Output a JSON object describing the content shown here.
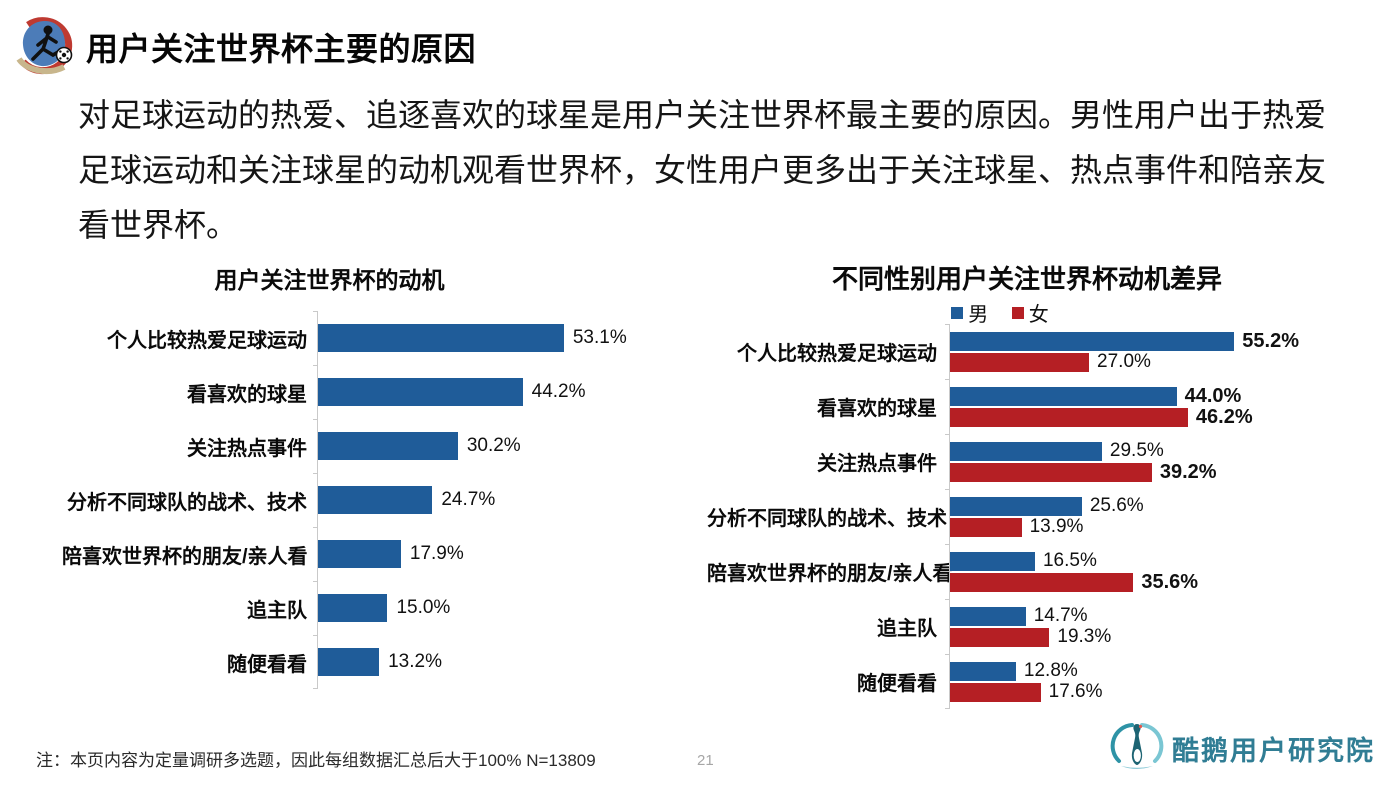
{
  "page": {
    "title": "用户关注世界杯主要的原因",
    "intro": "对足球运动的热爱、追逐喜欢的球星是用户关注世界杯最主要的原因。男性用户出于热爱足球运动和关注球星的动机观看世界杯，女性用户更多出于关注球星、热点事件和陪亲友看世界杯。",
    "footnote": "注：本页内容为定量调研多选题，因此每组数据汇总后大于100%  N=13809",
    "page_number": "21",
    "logo_text": "酷鹅用户研究院"
  },
  "colors": {
    "male_blue": "#1F5C99",
    "female_red": "#B51F24",
    "axis_gray": "#C9C9C9",
    "logo_teal": "#307D94"
  },
  "chart_data": [
    {
      "type": "bar",
      "orientation": "horizontal",
      "title": "用户关注世界杯的动机",
      "categories": [
        "个人比较热爱足球运动",
        "看喜欢的球星",
        "关注热点事件",
        "分析不同球队的战术、技术",
        "陪喜欢世界杯的朋友/亲人看",
        "追主队",
        "随便看看"
      ],
      "values": [
        53.1,
        44.2,
        30.2,
        24.7,
        17.9,
        15.0,
        13.2
      ],
      "labels": [
        "53.1%",
        "44.2%",
        "30.2%",
        "24.7%",
        "17.9%",
        "15.0%",
        "13.2%"
      ],
      "bar_color": "#1F5C99",
      "xlim": [
        0,
        60
      ],
      "grid": false,
      "legend_position": "none"
    },
    {
      "type": "bar",
      "orientation": "horizontal",
      "title": "不同性别用户关注世界杯动机差异",
      "categories": [
        "个人比较热爱足球运动",
        "看喜欢的球星",
        "关注热点事件",
        "分析不同球队的战术、技术",
        "陪喜欢世界杯的朋友/亲人看",
        "追主队",
        "随便看看"
      ],
      "series": [
        {
          "name": "男",
          "color": "#1F5C99",
          "values": [
            55.2,
            44.0,
            29.5,
            25.6,
            16.5,
            14.7,
            12.8
          ],
          "labels": [
            "55.2%",
            "44.0%",
            "29.5%",
            "25.6%",
            "16.5%",
            "14.7%",
            "12.8%"
          ],
          "bold": [
            true,
            true,
            false,
            false,
            false,
            false,
            false
          ]
        },
        {
          "name": "女",
          "color": "#B51F24",
          "values": [
            27.0,
            46.2,
            39.2,
            13.9,
            35.6,
            19.3,
            17.6
          ],
          "labels": [
            "27.0%",
            "46.2%",
            "39.2%",
            "13.9%",
            "35.6%",
            "19.3%",
            "17.6%"
          ],
          "bold": [
            false,
            true,
            true,
            false,
            true,
            false,
            false
          ]
        }
      ],
      "xlim": [
        0,
        60
      ],
      "grid": false,
      "legend_position": "top"
    }
  ]
}
